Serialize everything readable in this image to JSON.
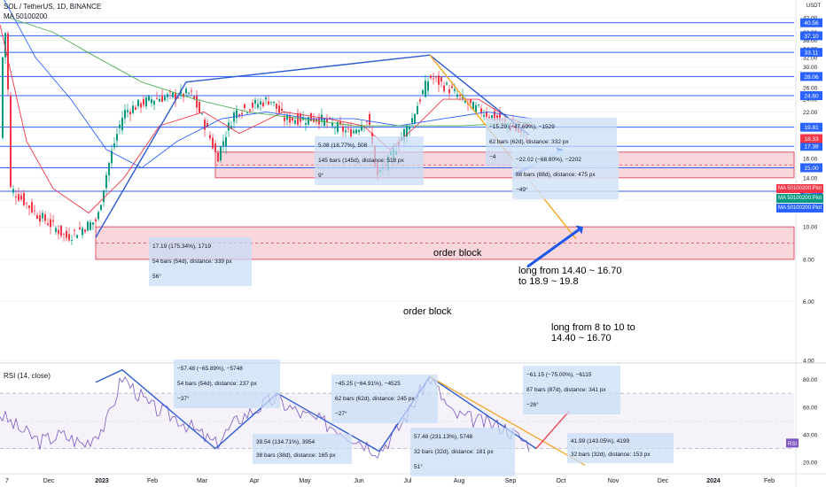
{
  "header": {
    "symbol_line": "SOL / TetherUS, 1D, BINANCE",
    "ma_line": "MA 50100200",
    "currency": "USDT"
  },
  "price_axis": {
    "ticks": [
      "42.00",
      "38.00",
      "36.00",
      "34.00",
      "32.00",
      "30.00",
      "26.00",
      "24.00",
      "22.00",
      "20.00",
      "16.00",
      "14.00",
      "12.00",
      "10.00",
      "8.00",
      "6.00",
      "4.00"
    ]
  },
  "levels": [
    {
      "label": "40.56",
      "value": 40.56
    },
    {
      "label": "37.10",
      "value": 37.1
    },
    {
      "label": "33.11",
      "value": 33.11
    },
    {
      "label": "28.06",
      "value": 28.06
    },
    {
      "label": "24.60",
      "value": 24.6
    },
    {
      "label": "19.81",
      "value": 19.81
    },
    {
      "label": "17.38",
      "value": 17.38
    },
    {
      "label": "15.00",
      "value": 15.0
    },
    {
      "label": "12.77",
      "value": 12.77
    }
  ],
  "last_price": {
    "label": "18.33",
    "value": 18.33,
    "color": "#f23645"
  },
  "ma_legend": [
    {
      "label": "MA 50100200:Plot",
      "color": "#f23645"
    },
    {
      "label": "MA 50100200:Plot",
      "color": "#089981"
    },
    {
      "label": "MA 50100200:Plot",
      "color": "#2962ff"
    }
  ],
  "order_blocks": [
    {
      "label": "order block",
      "low": 14.0,
      "high": 16.7
    },
    {
      "label": "order block",
      "low": 8.0,
      "high": 10.0
    }
  ],
  "annotations": [
    {
      "line1": "long from 14.40 ~ 16.70",
      "line2": "to 18.9 ~ 19.8"
    },
    {
      "line1": "long from 8 to 10 to",
      "line2": "14.40 ~ 16.70"
    }
  ],
  "measurements_price": [
    {
      "l1": "17.19 (175.34%), 1719",
      "l2": "54 bars (54d), distance: 339 px",
      "l3": "56°"
    },
    {
      "l1": "5.08 (18.77%), 508",
      "l2": "145 bars (145d), distance: 518 px",
      "l3": "9°"
    },
    {
      "l1": "−15.29 (−47.69%), −1529",
      "l2": "62 bars (62d), distance: 332 px",
      "l3": "−4"
    },
    {
      "l1": "−22.02 (−68.80%), −2202",
      "l2": "88 bars (88d), distance: 475 px",
      "l3": "−49°"
    }
  ],
  "measurements_rsi": [
    {
      "l1": "−57.48 (−65.89%), −5748",
      "l2": "54 bars (54d), distance: 237 px",
      "l3": "−37°"
    },
    {
      "l1": "39.54 (134.71%), 3954",
      "l2": "38 bars (38d), distance: 165 px",
      "l3": ""
    },
    {
      "l1": "−45.25 (−64.91%), −4525",
      "l2": "62 bars (62d), distance: 245 px",
      "l3": "−27°"
    },
    {
      "l1": "57.48 (231.13%), 5748",
      "l2": "32 bars (32d), distance: 181 px",
      "l3": "51°"
    },
    {
      "l1": "−61.15 (−75.00%), −6115",
      "l2": "87 bars (87d), distance: 341 px",
      "l3": "−26°"
    },
    {
      "l1": "41.99 (143.05%), 4199",
      "l2": "32 bars (32d), distance: 153 px",
      "l3": ""
    }
  ],
  "rsi": {
    "title": "RSI (14, close)",
    "badge": "RSI",
    "ticks": [
      "80.00",
      "60.00",
      "40.00",
      "20.00"
    ],
    "upper": 70,
    "lower": 30
  },
  "time_axis": [
    "7",
    "Dec",
    "2023",
    "Feb",
    "Mar",
    "Apr",
    "May",
    "Jun",
    "Jul",
    "Aug",
    "Sep",
    "Oct",
    "Nov",
    "Dec",
    "2024",
    "Feb"
  ],
  "colors": {
    "trendline": "#2d5bd3",
    "target_line": "#f5a623",
    "arrow": "#1e56e8",
    "level_line": "#2962ff",
    "ob_fill": "#f8d7dc",
    "ob_border": "#e0566b",
    "rsi_line": "#7e57c2"
  },
  "chart_data": [
    {
      "type": "line",
      "title": "SOL / TetherUS, 1D, BINANCE",
      "x": [
        "Nov 2022",
        "Dec 2022",
        "Jan 2023",
        "Feb 2023",
        "Mar 2023",
        "Apr 2023",
        "May 2023",
        "Jun 2023",
        "Jul 2023",
        "Aug 2023",
        "Sep 2023"
      ],
      "series": [
        {
          "name": "",
          "values": [
            30,
            13,
            10,
            23,
            20,
            22,
            21,
            17,
            27,
            23,
            18.33
          ]
        }
      ],
      "ylim": [
        4,
        42
      ],
      "log_scale": true,
      "levels": [
        40.56,
        37.1,
        33.11,
        28.06,
        24.6,
        19.81,
        17.38,
        15.0,
        12.77
      ]
    },
    {
      "type": "line",
      "title": "RSI (14, close)",
      "x": [
        "Nov 2022",
        "Dec 2022",
        "Jan 2023",
        "Feb 2023",
        "Mar 2023",
        "Apr 2023",
        "May 2023",
        "Jun 2023",
        "Jul 2023",
        "Aug 2023",
        "Sep 2023"
      ],
      "series": [
        {
          "name": "",
          "values": [
            45,
            40,
            35,
            60,
            33,
            65,
            48,
            30,
            82,
            45,
            33
          ]
        }
      ],
      "ylim": [
        15,
        90
      ]
    }
  ]
}
